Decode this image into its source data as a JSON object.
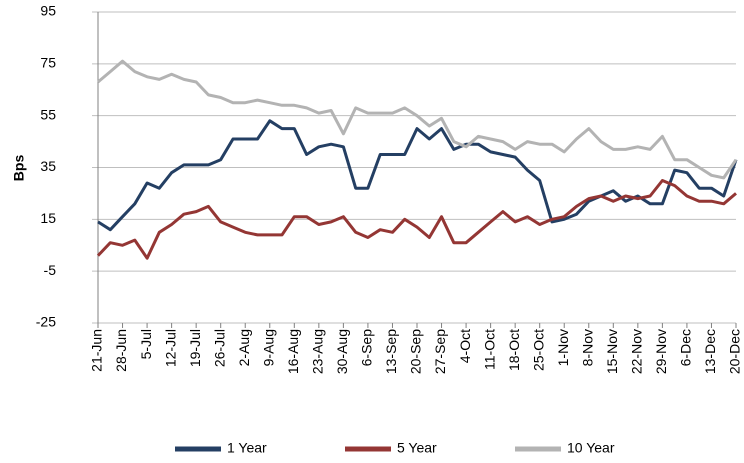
{
  "chart_data": {
    "type": "line",
    "y_label": "Bps",
    "categories": [
      "21-Jun",
      null,
      "28-Jun",
      null,
      "5-Jul",
      null,
      "12-Jul",
      null,
      "19-Jul",
      null,
      "26-Jul",
      null,
      "2-Aug",
      null,
      "9-Aug",
      null,
      "16-Aug",
      null,
      "23-Aug",
      null,
      "30-Aug",
      null,
      "6-Sep",
      null,
      "13-Sep",
      null,
      "20-Sep",
      null,
      "27-Sep",
      null,
      "4-Oct",
      null,
      "11-Oct",
      null,
      "18-Oct",
      null,
      "25-Oct",
      null,
      "1-Nov",
      null,
      "8-Nov",
      null,
      "15-Nov",
      null,
      "22-Nov",
      null,
      "29-Nov",
      null,
      "6-Dec",
      null,
      "13-Dec",
      null,
      "20-Dec"
    ],
    "series": [
      {
        "name": "1 Year",
        "color": "#243f63",
        "values": [
          14,
          11,
          16,
          21,
          29,
          27,
          33,
          36,
          36,
          36,
          38,
          46,
          46,
          46,
          53,
          50,
          50,
          40,
          43,
          44,
          43,
          27,
          27,
          40,
          40,
          40,
          50,
          46,
          50,
          42,
          44,
          44,
          41,
          40,
          39,
          34,
          30,
          14,
          15,
          17,
          22,
          24,
          26,
          22,
          24,
          21,
          21,
          34,
          33,
          27,
          27,
          24,
          38
        ]
      },
      {
        "name": "5 Year",
        "color": "#943634",
        "values": [
          1,
          6,
          5,
          7,
          0,
          10,
          13,
          17,
          18,
          20,
          14,
          12,
          10,
          9,
          9,
          9,
          16,
          16,
          13,
          14,
          16,
          10,
          8,
          11,
          10,
          15,
          12,
          8,
          16,
          6,
          6,
          10,
          14,
          18,
          14,
          16,
          13,
          15,
          16,
          20,
          23,
          24,
          22,
          24,
          23,
          24,
          30,
          28,
          24,
          22,
          22,
          21,
          25
        ]
      },
      {
        "name": "10 Year",
        "color": "#b3b3b3",
        "values": [
          68,
          72,
          76,
          72,
          70,
          69,
          71,
          69,
          68,
          63,
          62,
          60,
          60,
          61,
          60,
          59,
          59,
          58,
          56,
          57,
          48,
          58,
          56,
          56,
          56,
          58,
          55,
          51,
          54,
          45,
          43,
          47,
          46,
          45,
          42,
          45,
          44,
          44,
          41,
          46,
          50,
          45,
          42,
          42,
          43,
          42,
          47,
          38,
          38,
          35,
          32,
          31,
          38
        ]
      }
    ],
    "ylim": [
      -25,
      95
    ],
    "yticks": [
      -25,
      -5,
      15,
      35,
      55,
      75,
      95
    ],
    "grid": true,
    "legend": "bottom"
  }
}
